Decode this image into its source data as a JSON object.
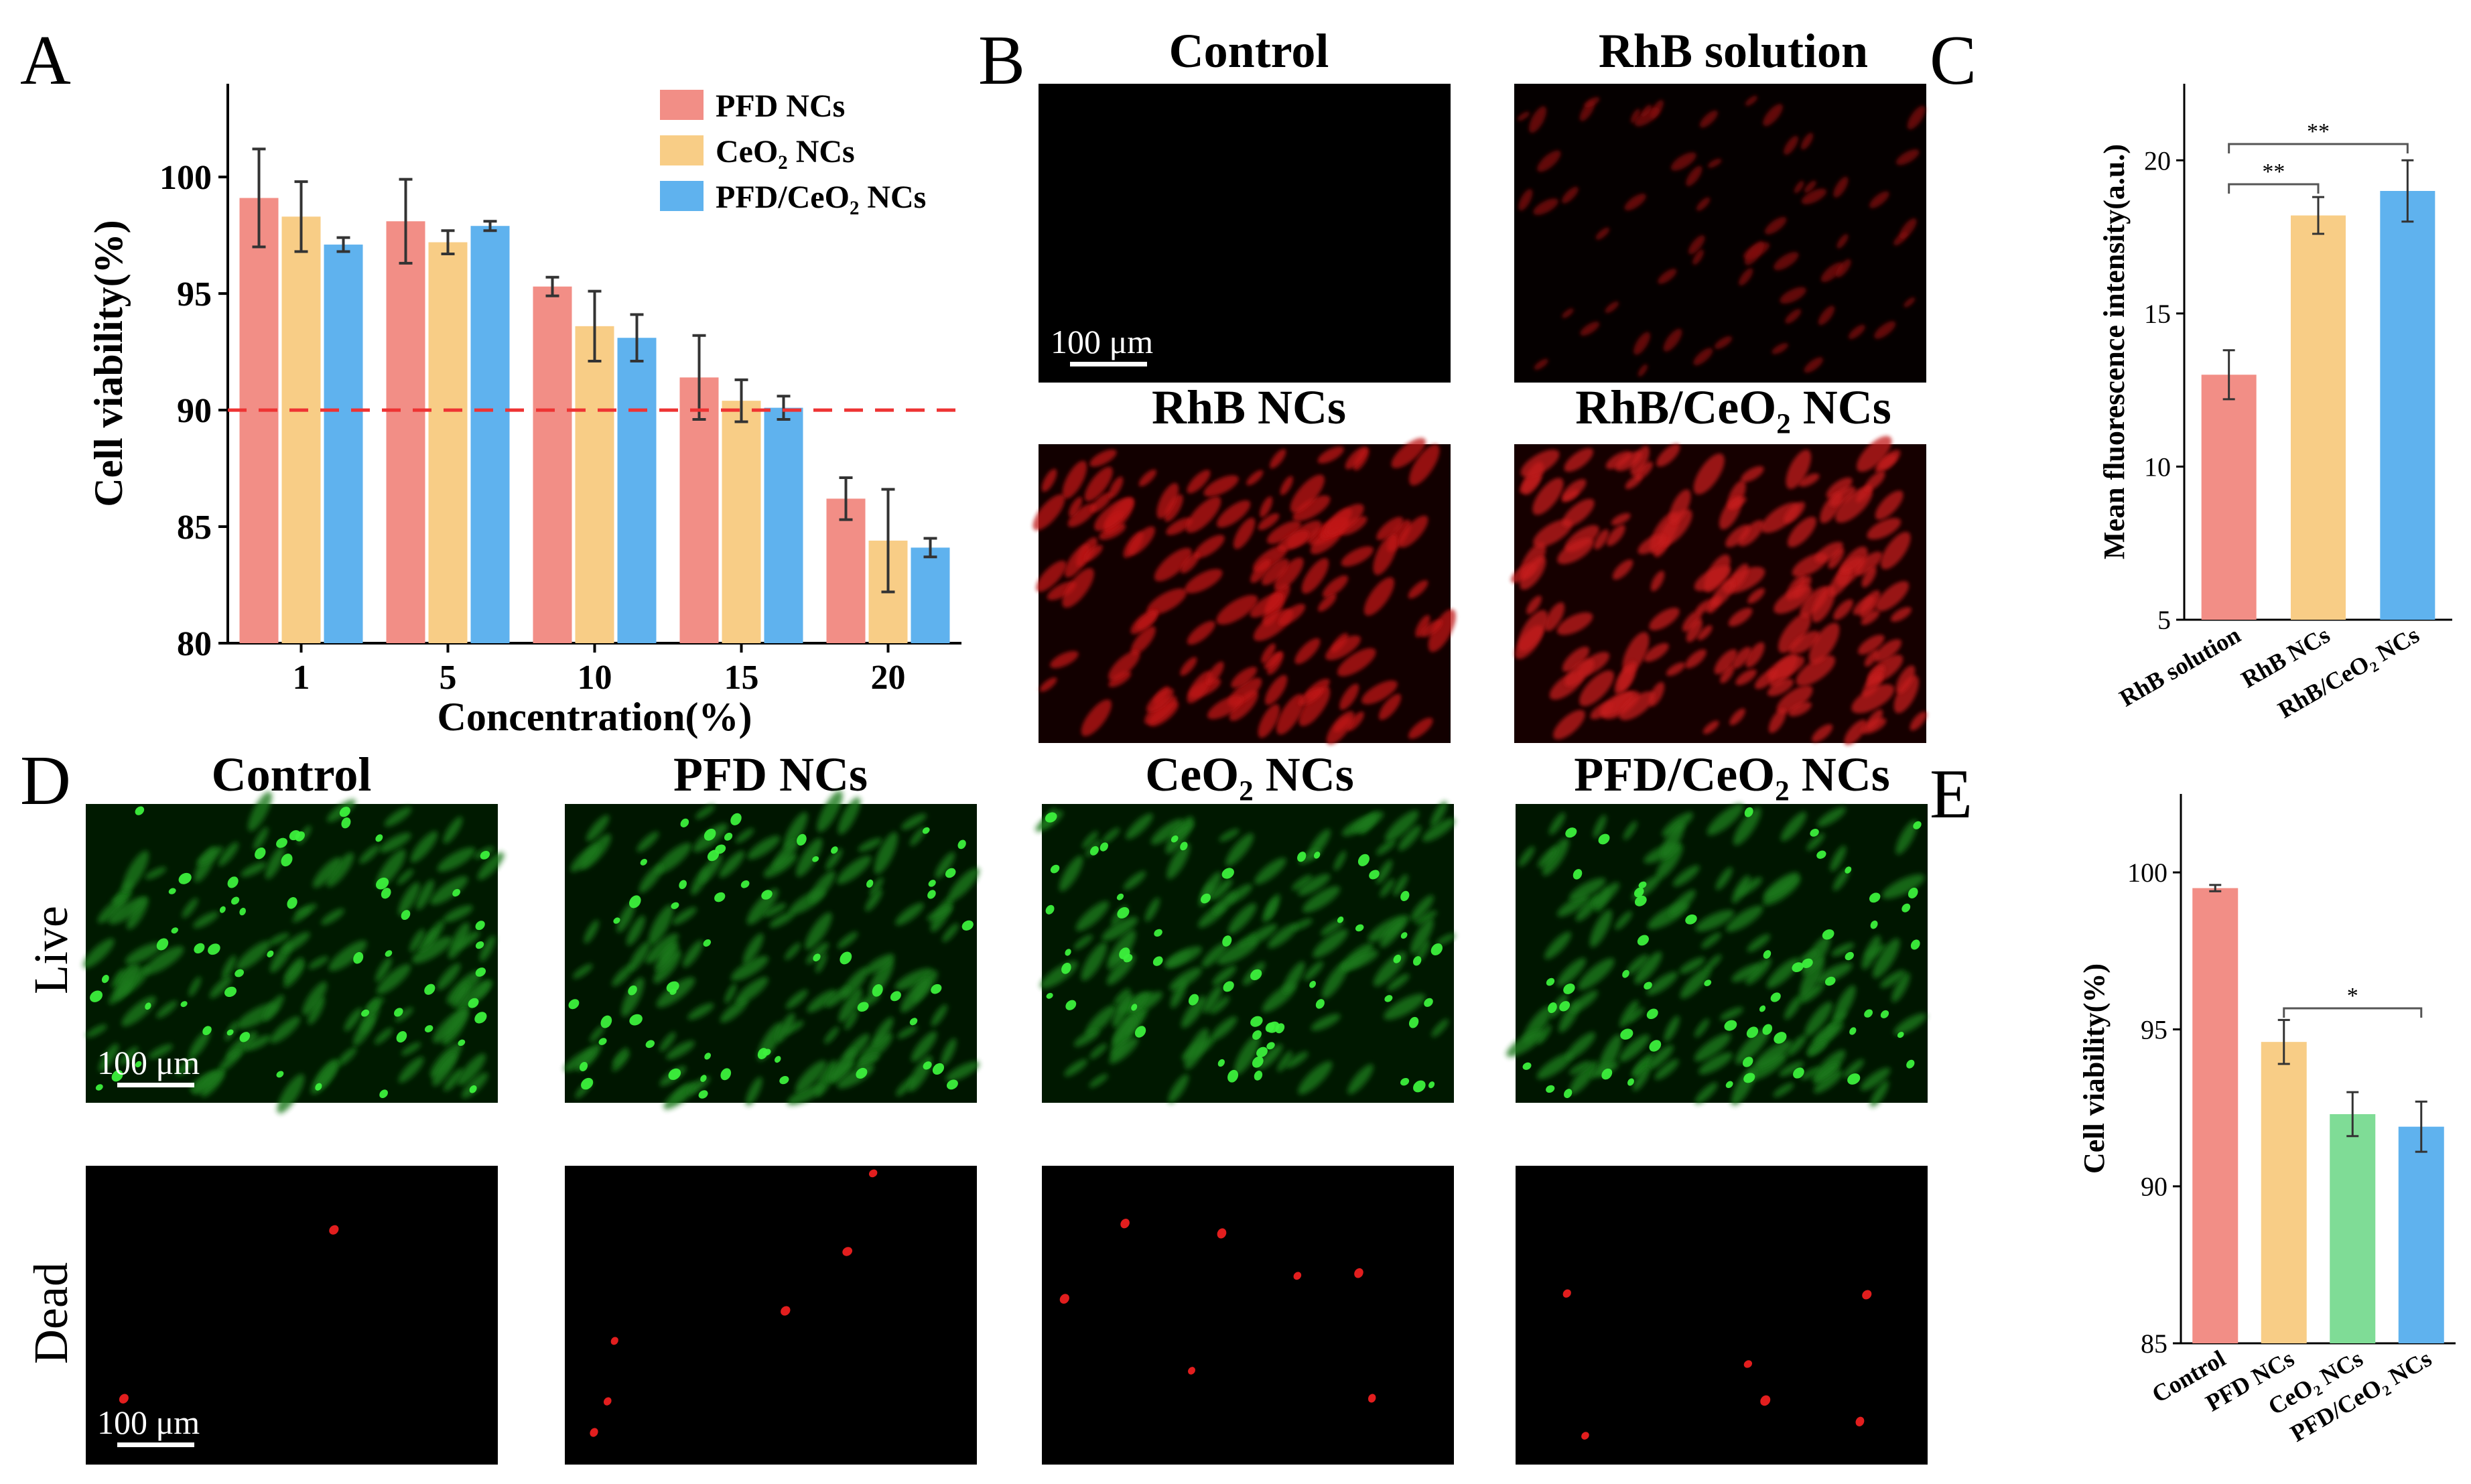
{
  "panel_letters": [
    "A",
    "B",
    "C",
    "D",
    "E"
  ],
  "colors": {
    "pfd": "#f28e86",
    "ceo2": "#f8cd86",
    "pfdceo2": "#5fb2ee",
    "green": "#7fdc96",
    "red_line": "#ee3333"
  },
  "chart_data": [
    {
      "type": "bar",
      "panel": "A",
      "categories": [
        "1",
        "5",
        "10",
        "15",
        "20"
      ],
      "series": [
        {
          "name": "PFD NCs",
          "values": [
            99.1,
            98.1,
            95.3,
            91.4,
            86.2
          ],
          "errors": [
            2.1,
            1.8,
            0.4,
            1.8,
            0.9
          ]
        },
        {
          "name": "CeO₂ NCs",
          "values": [
            98.3,
            97.2,
            93.6,
            90.4,
            84.4
          ],
          "errors": [
            1.5,
            0.5,
            1.5,
            0.9,
            2.2
          ]
        },
        {
          "name": "PFD/CeO₂ NCs",
          "values": [
            97.1,
            97.9,
            93.1,
            90.1,
            84.1
          ],
          "errors": [
            0.3,
            0.2,
            1.0,
            0.5,
            0.4
          ]
        }
      ],
      "xlabel": "Concentration(%)",
      "ylabel": "Cell viability(%)",
      "ylim": [
        80,
        104
      ],
      "yticks": [
        "80",
        "85",
        "90",
        "95",
        "100"
      ],
      "threshold": 90,
      "legend_position": "top-right"
    },
    {
      "type": "bar",
      "panel": "C",
      "categories": [
        "RhB solution",
        "RhB NCs",
        "RhB/CeO₂ NCs"
      ],
      "values": [
        13.0,
        18.2,
        19.0
      ],
      "errors": [
        0.8,
        0.6,
        1.0
      ],
      "ylabel": "Mean fluorescence intensity(a.u.)",
      "ylim": [
        5,
        22.5
      ],
      "yticks": [
        "5",
        "10",
        "15",
        "20"
      ],
      "significance": [
        {
          "from": 0,
          "to": 1,
          "label": "**"
        },
        {
          "from": 0,
          "to": 2,
          "label": "**"
        }
      ]
    },
    {
      "type": "bar",
      "panel": "E",
      "categories": [
        "Control",
        "PFD NCs",
        "CeO₂ NCs",
        "PFD/CeO₂ NCs"
      ],
      "values": [
        99.5,
        94.6,
        92.3,
        91.9
      ],
      "errors": [
        0.1,
        0.7,
        0.7,
        0.8
      ],
      "ylabel": "Cell viability(%)",
      "ylim": [
        85,
        102.5
      ],
      "yticks": [
        "85",
        "90",
        "95",
        "100"
      ],
      "significance": [
        {
          "from": 1,
          "to": 3,
          "label": "*"
        }
      ]
    }
  ],
  "panel_b": {
    "titles": [
      "Control",
      "RhB solution",
      "RhB NCs",
      "RhB/CeO₂ NCs"
    ],
    "scale_bar": "100 μm"
  },
  "panel_d": {
    "titles": [
      "Control",
      "PFD NCs",
      "CeO₂ NCs",
      "PFD/CeO₂ NCs"
    ],
    "rows": [
      "Live",
      "Dead"
    ],
    "scale_bar": "100 μm"
  }
}
